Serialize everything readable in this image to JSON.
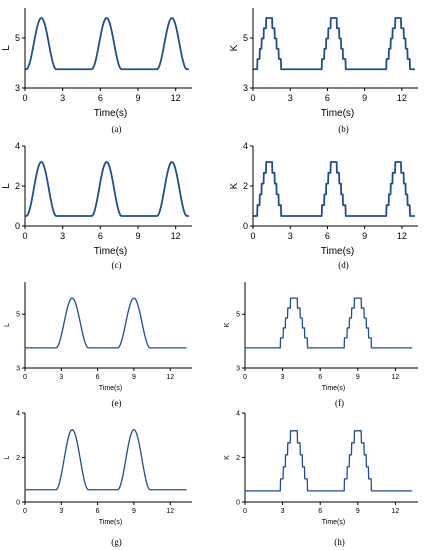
{
  "colors": {
    "line": "#1f4e8f",
    "axis": "#000000",
    "background": "#ffffff"
  },
  "chart_data": [
    {
      "type": "line",
      "caption": "(a)",
      "xlabel": "Time(s)",
      "ylabel": "L",
      "xlim": [
        0,
        13.3
      ],
      "ylim": [
        3,
        6.2
      ],
      "xticks": [
        0,
        3,
        6,
        9,
        12
      ],
      "yticks": [
        3,
        5
      ],
      "shape": "smooth",
      "x_start": 0.1,
      "x_end": 13.0,
      "baseline": 3.75,
      "peak": 5.8,
      "peak_centers": [
        1.3,
        6.5,
        11.7
      ],
      "half_width": 1.2,
      "series": [
        {
          "x": [
            0.1,
            0.5,
            1.3,
            2.3,
            4.0,
            5.5,
            6.5,
            7.5,
            9.0,
            10.7,
            11.7,
            12.7,
            13.0
          ],
          "y": [
            3.75,
            5.1,
            5.8,
            3.9,
            3.75,
            3.9,
            5.8,
            3.9,
            3.75,
            3.9,
            5.8,
            3.9,
            3.75
          ]
        }
      ]
    },
    {
      "type": "line",
      "caption": "(b)",
      "xlabel": "Time(s)",
      "ylabel": "K",
      "xlim": [
        0,
        13.3
      ],
      "ylim": [
        3,
        6.2
      ],
      "xticks": [
        0,
        3,
        6,
        9,
        12
      ],
      "yticks": [
        3,
        5
      ],
      "shape": "stepped",
      "x_start": 0.1,
      "x_end": 13.0,
      "baseline": 3.75,
      "peak": 5.8,
      "peak_centers": [
        1.3,
        6.5,
        11.7
      ],
      "half_width": 1.2,
      "series": [
        {
          "x": [
            0.1,
            1.0,
            1.7,
            2.5,
            4.0,
            6.2,
            6.9,
            9.0,
            11.4,
            12.1,
            13.0
          ],
          "y": [
            3.75,
            5.8,
            5.8,
            3.75,
            3.75,
            5.8,
            5.8,
            3.75,
            5.8,
            5.8,
            3.75
          ]
        }
      ]
    },
    {
      "type": "line",
      "caption": "(c)",
      "xlabel": "Time(s)",
      "ylabel": "L",
      "xlim": [
        0,
        13.3
      ],
      "ylim": [
        0,
        4
      ],
      "xticks": [
        0,
        3,
        6,
        9,
        12
      ],
      "yticks": [
        0,
        2,
        4
      ],
      "shape": "smooth",
      "x_start": 0.1,
      "x_end": 13.0,
      "baseline": 0.5,
      "peak": 3.2,
      "peak_centers": [
        1.3,
        6.5,
        11.7
      ],
      "half_width": 1.2,
      "series": [
        {
          "x": [
            0.1,
            1.3,
            2.5,
            4.0,
            6.5,
            7.7,
            9.0,
            11.7,
            13.0
          ],
          "y": [
            0.5,
            3.2,
            0.6,
            0.5,
            3.2,
            0.6,
            0.5,
            3.2,
            0.5
          ]
        }
      ]
    },
    {
      "type": "line",
      "caption": "(d)",
      "xlabel": "Time(s)",
      "ylabel": "K",
      "xlim": [
        0,
        13.3
      ],
      "ylim": [
        0,
        4
      ],
      "xticks": [
        0,
        3,
        6,
        9,
        12
      ],
      "yticks": [
        0,
        2,
        4
      ],
      "shape": "stepped",
      "x_start": 0.1,
      "x_end": 13.0,
      "baseline": 0.5,
      "peak": 3.2,
      "peak_centers": [
        1.3,
        6.5,
        11.7
      ],
      "half_width": 1.2,
      "series": [
        {
          "x": [
            0.1,
            1.0,
            1.7,
            2.5,
            4.0,
            6.2,
            6.9,
            9.0,
            11.4,
            12.1,
            13.0
          ],
          "y": [
            0.5,
            3.2,
            3.2,
            0.5,
            0.5,
            3.2,
            3.2,
            0.5,
            3.2,
            3.2,
            0.5
          ]
        }
      ]
    },
    {
      "type": "line",
      "caption": "(e)",
      "xlabel": "Time(s)",
      "ylabel": "L",
      "xlim": [
        0,
        13.8
      ],
      "ylim": [
        3,
        6.2
      ],
      "xticks": [
        0,
        3,
        6,
        9,
        12
      ],
      "yticks": [
        3,
        5
      ],
      "shape": "smooth",
      "x_start": 0.0,
      "x_end": 13.3,
      "baseline": 3.75,
      "peak": 5.6,
      "peak_centers": [
        3.9,
        9.0
      ],
      "half_width": 1.35,
      "series": [
        {
          "x": [
            0.0,
            2.5,
            3.9,
            5.3,
            7.6,
            9.0,
            10.4,
            13.3
          ],
          "y": [
            3.75,
            3.8,
            5.6,
            3.8,
            3.8,
            5.6,
            3.8,
            3.75
          ]
        }
      ]
    },
    {
      "type": "line",
      "caption": "(f)",
      "xlabel": "Time(s)",
      "ylabel": "K",
      "xlim": [
        0,
        13.8
      ],
      "ylim": [
        3,
        6.2
      ],
      "xticks": [
        0,
        3,
        6,
        9,
        12
      ],
      "yticks": [
        3,
        5
      ],
      "shape": "stepped",
      "x_start": 0.0,
      "x_end": 13.3,
      "baseline": 3.75,
      "peak": 5.6,
      "peak_centers": [
        3.9,
        9.0
      ],
      "half_width": 1.35,
      "series": [
        {
          "x": [
            0.0,
            2.5,
            3.6,
            4.3,
            5.3,
            7.6,
            8.7,
            9.4,
            10.4,
            13.3
          ],
          "y": [
            3.75,
            3.75,
            5.6,
            5.6,
            3.75,
            3.75,
            5.6,
            5.6,
            3.75,
            3.75
          ]
        }
      ]
    },
    {
      "type": "line",
      "caption": "(g)",
      "xlabel": "Time(s)",
      "ylabel": "L",
      "xlim": [
        0,
        13.8
      ],
      "ylim": [
        0,
        4
      ],
      "xticks": [
        0,
        3,
        6,
        9,
        12
      ],
      "yticks": [
        0,
        2,
        4
      ],
      "shape": "smooth",
      "x_start": 0.0,
      "x_end": 13.3,
      "baseline": 0.55,
      "peak": 3.25,
      "peak_centers": [
        3.9,
        9.0
      ],
      "half_width": 1.35,
      "series": [
        {
          "x": [
            0.0,
            2.5,
            3.9,
            5.3,
            7.6,
            9.0,
            10.4,
            13.3
          ],
          "y": [
            0.55,
            0.6,
            3.25,
            0.6,
            0.6,
            3.25,
            0.6,
            0.55
          ]
        }
      ]
    },
    {
      "type": "line",
      "caption": "(h)",
      "xlabel": "Time(s)",
      "ylabel": "K",
      "xlim": [
        0,
        13.8
      ],
      "ylim": [
        0,
        4
      ],
      "xticks": [
        0,
        3,
        6,
        9,
        12
      ],
      "yticks": [
        0,
        2,
        4
      ],
      "shape": "stepped",
      "x_start": 0.0,
      "x_end": 13.3,
      "baseline": 0.5,
      "peak": 3.2,
      "peak_centers": [
        3.9,
        9.0
      ],
      "half_width": 1.35,
      "series": [
        {
          "x": [
            0.0,
            2.5,
            3.6,
            4.3,
            5.3,
            7.6,
            8.7,
            9.4,
            10.4,
            13.3
          ],
          "y": [
            0.5,
            0.5,
            3.2,
            3.2,
            0.5,
            0.5,
            3.2,
            3.2,
            0.5,
            0.5
          ]
        }
      ]
    }
  ]
}
